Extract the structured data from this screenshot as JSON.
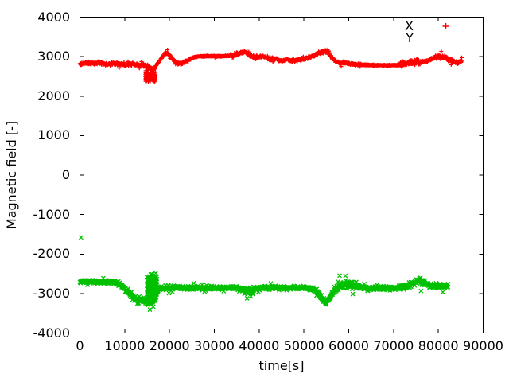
{
  "chart_data": {
    "type": "scatter",
    "title": "",
    "xlabel": "time[s]",
    "ylabel": "Magnetic field [-]",
    "xlim": [
      0,
      90000
    ],
    "ylim": [
      -4000,
      4000
    ],
    "x_ticks": [
      0,
      10000,
      20000,
      30000,
      40000,
      50000,
      60000,
      70000,
      80000,
      90000
    ],
    "y_ticks": [
      -4000,
      -3000,
      -2000,
      -1000,
      0,
      1000,
      2000,
      3000,
      4000
    ],
    "grid": false,
    "background": "#ffffff",
    "axis_color": "#000000",
    "legend": {
      "position": "top-right",
      "entries": [
        {
          "label": "X",
          "marker": "plus",
          "color": "#ff0000",
          "sample_visible": true
        },
        {
          "label": "Y",
          "marker": "cross",
          "color": "#00c000",
          "sample_visible": false
        }
      ]
    },
    "series": [
      {
        "name": "X",
        "marker": "plus",
        "color": "#ff0000",
        "dt": 60,
        "t_end": 85300,
        "seed": 101,
        "keyframes": [
          [
            0,
            2820
          ],
          [
            1500,
            2840
          ],
          [
            3000,
            2820
          ],
          [
            4500,
            2850
          ],
          [
            6000,
            2810
          ],
          [
            7500,
            2840
          ],
          [
            9000,
            2800
          ],
          [
            10500,
            2790
          ],
          [
            12000,
            2810
          ],
          [
            13000,
            2770
          ],
          [
            14000,
            2790
          ],
          [
            15000,
            2740
          ],
          [
            16000,
            2690
          ],
          [
            16800,
            2720
          ],
          [
            17500,
            2840
          ],
          [
            18300,
            2980
          ],
          [
            19000,
            3080
          ],
          [
            19600,
            3090
          ],
          [
            20300,
            3000
          ],
          [
            21000,
            2900
          ],
          [
            21800,
            2830
          ],
          [
            22600,
            2810
          ],
          [
            23400,
            2870
          ],
          [
            24200,
            2910
          ],
          [
            25000,
            2960
          ],
          [
            26000,
            3000
          ],
          [
            27000,
            3010
          ],
          [
            28500,
            3015
          ],
          [
            30000,
            3010
          ],
          [
            31500,
            3010
          ],
          [
            33000,
            3015
          ],
          [
            34000,
            3030
          ],
          [
            35000,
            3060
          ],
          [
            36000,
            3110
          ],
          [
            36800,
            3130
          ],
          [
            37600,
            3080
          ],
          [
            38400,
            3010
          ],
          [
            39200,
            2960
          ],
          [
            40000,
            2990
          ],
          [
            40800,
            3010
          ],
          [
            41600,
            2970
          ],
          [
            42400,
            2920
          ],
          [
            43200,
            2950
          ],
          [
            44000,
            2930
          ],
          [
            45000,
            2880
          ],
          [
            46000,
            2930
          ],
          [
            47000,
            2900
          ],
          [
            48500,
            2910
          ],
          [
            50000,
            2940
          ],
          [
            51500,
            2990
          ],
          [
            52800,
            3060
          ],
          [
            54000,
            3130
          ],
          [
            54700,
            3150
          ],
          [
            55400,
            3090
          ],
          [
            56200,
            2980
          ],
          [
            57000,
            2890
          ],
          [
            58000,
            2830
          ],
          [
            59000,
            2850
          ],
          [
            60000,
            2820
          ],
          [
            61500,
            2800
          ],
          [
            63000,
            2790
          ],
          [
            65000,
            2785
          ],
          [
            67000,
            2780
          ],
          [
            69000,
            2780
          ],
          [
            71000,
            2785
          ],
          [
            72500,
            2810
          ],
          [
            74000,
            2840
          ],
          [
            75500,
            2860
          ],
          [
            77000,
            2880
          ],
          [
            78500,
            2940
          ],
          [
            79800,
            3000
          ],
          [
            81000,
            2990
          ],
          [
            82000,
            2950
          ],
          [
            83000,
            2890
          ],
          [
            84200,
            2850
          ],
          [
            85300,
            2880
          ]
        ],
        "noise_zones": [
          [
            0,
            17000,
            40
          ],
          [
            17000,
            25000,
            30
          ],
          [
            25000,
            33500,
            14
          ],
          [
            33500,
            39500,
            45
          ],
          [
            39500,
            52000,
            28
          ],
          [
            52000,
            57500,
            35
          ],
          [
            57500,
            63000,
            30
          ],
          [
            63000,
            71500,
            12
          ],
          [
            71500,
            76000,
            75
          ],
          [
            76000,
            79000,
            35
          ],
          [
            79000,
            83000,
            50
          ],
          [
            83000,
            85400,
            40
          ]
        ],
        "bursts": [
          {
            "t0": 14600,
            "t1": 16900,
            "v0": 2340,
            "v1": 2650,
            "n": 160
          }
        ],
        "outliers": []
      },
      {
        "name": "Y",
        "marker": "cross",
        "color": "#00c000",
        "dt": 60,
        "t_end": 82200,
        "seed": 202,
        "keyframes": [
          [
            0,
            -2700
          ],
          [
            2000,
            -2700
          ],
          [
            4000,
            -2710
          ],
          [
            6000,
            -2705
          ],
          [
            8000,
            -2720
          ],
          [
            9000,
            -2760
          ],
          [
            10000,
            -2880
          ],
          [
            11000,
            -3000
          ],
          [
            12000,
            -3090
          ],
          [
            13000,
            -3180
          ],
          [
            13800,
            -3130
          ],
          [
            14600,
            -3200
          ],
          [
            15400,
            -3230
          ],
          [
            16200,
            -3180
          ],
          [
            16900,
            -3000
          ],
          [
            17600,
            -2870
          ],
          [
            18500,
            -2860
          ],
          [
            20000,
            -2855
          ],
          [
            22000,
            -2850
          ],
          [
            24000,
            -2860
          ],
          [
            26000,
            -2850
          ],
          [
            28000,
            -2858
          ],
          [
            30000,
            -2850
          ],
          [
            32000,
            -2860
          ],
          [
            34000,
            -2855
          ],
          [
            35500,
            -2880
          ],
          [
            36500,
            -2920
          ],
          [
            37500,
            -2940
          ],
          [
            38500,
            -2900
          ],
          [
            39500,
            -2870
          ],
          [
            41000,
            -2855
          ],
          [
            43000,
            -2850
          ],
          [
            45000,
            -2858
          ],
          [
            47000,
            -2852
          ],
          [
            49000,
            -2858
          ],
          [
            51000,
            -2860
          ],
          [
            52300,
            -2900
          ],
          [
            53300,
            -3000
          ],
          [
            54200,
            -3150
          ],
          [
            54900,
            -3230
          ],
          [
            55600,
            -3150
          ],
          [
            56400,
            -3000
          ],
          [
            57200,
            -2880
          ],
          [
            58000,
            -2810
          ],
          [
            59000,
            -2770
          ],
          [
            60000,
            -2750
          ],
          [
            61000,
            -2790
          ],
          [
            62000,
            -2830
          ],
          [
            63500,
            -2860
          ],
          [
            65500,
            -2870
          ],
          [
            67500,
            -2865
          ],
          [
            69500,
            -2870
          ],
          [
            71000,
            -2855
          ],
          [
            72500,
            -2820
          ],
          [
            73800,
            -2770
          ],
          [
            74800,
            -2700
          ],
          [
            75600,
            -2660
          ],
          [
            76400,
            -2700
          ],
          [
            77400,
            -2770
          ],
          [
            78500,
            -2810
          ],
          [
            80000,
            -2800
          ],
          [
            81000,
            -2810
          ],
          [
            82200,
            -2820
          ]
        ],
        "noise_zones": [
          [
            0,
            8500,
            40
          ],
          [
            8500,
            10500,
            55
          ],
          [
            10500,
            16500,
            85
          ],
          [
            16500,
            18000,
            60
          ],
          [
            18000,
            35500,
            45
          ],
          [
            35500,
            39500,
            70
          ],
          [
            39500,
            52000,
            45
          ],
          [
            52000,
            57000,
            55
          ],
          [
            57000,
            62500,
            100
          ],
          [
            62500,
            71000,
            45
          ],
          [
            71000,
            73500,
            55
          ],
          [
            73500,
            77000,
            80
          ],
          [
            77000,
            82300,
            55
          ]
        ],
        "bursts": [
          {
            "t0": 14900,
            "t1": 17200,
            "v0": -2460,
            "v1": -3280,
            "n": 220
          }
        ],
        "outliers": [
          [
            250,
            -1580
          ]
        ]
      }
    ]
  }
}
